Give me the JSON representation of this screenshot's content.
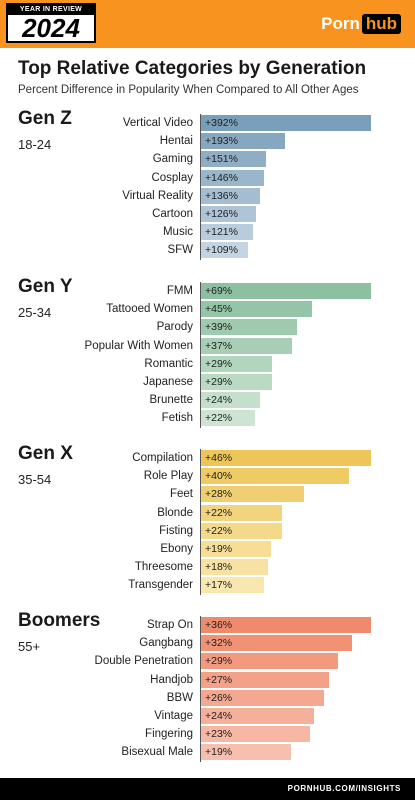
{
  "header": {
    "badge_top": "YEAR IN REVIEW",
    "badge_year": "2024",
    "logo_part1": "Porn",
    "logo_part2": "hub",
    "brand_color": "#f7931e"
  },
  "footer": {
    "url": "PORNHUB.COM/INSIGHTS"
  },
  "chart_data": {
    "type": "bar",
    "orientation": "horizontal",
    "title": "Top Relative Categories by Generation",
    "subtitle": "Percent Difference in Popularity When Compared to All Other Ages",
    "value_unit": "%",
    "groups": [
      {
        "name": "Gen Z",
        "age_range": "18-24",
        "color_start": "#7a9fba",
        "color_end": "#c4d4e2",
        "categories": [
          "Vertical Video",
          "Hentai",
          "Gaming",
          "Cosplay",
          "Virtual Reality",
          "Cartoon",
          "Music",
          "SFW"
        ],
        "values": [
          392,
          193,
          151,
          146,
          136,
          126,
          121,
          109
        ],
        "labels": [
          "+392%",
          "+193%",
          "+151%",
          "+146%",
          "+136%",
          "+126%",
          "+121%",
          "+109%"
        ]
      },
      {
        "name": "Gen Y",
        "age_range": "25-34",
        "color_start": "#8cc0a0",
        "color_end": "#cde4d3",
        "categories": [
          "FMM",
          "Tattooed Women",
          "Parody",
          "Popular With Women",
          "Romantic",
          "Japanese",
          "Brunette",
          "Fetish"
        ],
        "values": [
          69,
          45,
          39,
          37,
          29,
          29,
          24,
          22
        ],
        "labels": [
          "+69%",
          "+45%",
          "+39%",
          "+37%",
          "+29%",
          "+29%",
          "+24%",
          "+22%"
        ]
      },
      {
        "name": "Gen X",
        "age_range": "35-54",
        "color_start": "#edc65a",
        "color_end": "#f9e7b0",
        "categories": [
          "Compilation",
          "Role Play",
          "Feet",
          "Blonde",
          "Fisting",
          "Ebony",
          "Threesome",
          "Transgender"
        ],
        "values": [
          46,
          40,
          28,
          22,
          22,
          19,
          18,
          17
        ],
        "labels": [
          "+46%",
          "+40%",
          "+28%",
          "+22%",
          "+22%",
          "+19%",
          "+18%",
          "+17%"
        ]
      },
      {
        "name": "Boomers",
        "age_range": "55+",
        "color_start": "#f08a6c",
        "color_end": "#f7bfae",
        "categories": [
          "Strap On",
          "Gangbang",
          "Double Penetration",
          "Handjob",
          "BBW",
          "Vintage",
          "Fingering",
          "Bisexual Male"
        ],
        "values": [
          36,
          32,
          29,
          27,
          26,
          24,
          23,
          19
        ],
        "labels": [
          "+36%",
          "+32%",
          "+29%",
          "+27%",
          "+26%",
          "+24%",
          "+23%",
          "+19%"
        ]
      }
    ]
  }
}
